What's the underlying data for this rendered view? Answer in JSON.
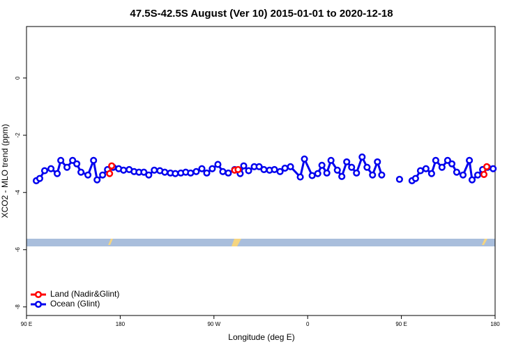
{
  "chart_data": {
    "type": "line",
    "title": "47.5S-42.5S August (Ver 10)   2015-01-01 to 2020-12-18",
    "xlabel": "Longitude (deg E)",
    "ylabel": "XCO2 - MLO trend (ppm)",
    "xlim": [
      90,
      540
    ],
    "ylim": [
      -8.3,
      1.8
    ],
    "xticks": [
      {
        "value": 90,
        "label": "90 E"
      },
      180,
      {
        "value": 270,
        "label": "90 W"
      },
      {
        "value": 360,
        "label": "0"
      },
      {
        "value": 450,
        "label": "90 E"
      },
      {
        "value": 540,
        "label": "180"
      }
    ],
    "yticks": [
      0,
      -2,
      -4,
      -6,
      -8
    ],
    "legend": "bottom-left",
    "series": [
      {
        "name": "Land (Nadir&Glint)",
        "color": "#ff0000",
        "x": [
          169.8,
          171.8,
          200,
          289.9,
          293.2,
          400,
          529.3,
          532.0
        ],
        "values": [
          -3.34,
          -3.07,
          null,
          -3.22,
          -3.2,
          null,
          -3.37,
          -3.1
        ]
      },
      {
        "name": "Ocean (Glint)",
        "color": "#0000ee",
        "x": [
          99.4,
          102.7,
          107.4,
          113.5,
          119.5,
          122.9,
          128.9,
          134.3,
          138.3,
          142.3,
          149.0,
          154.4,
          157.8,
          163.1,
          167.8,
          173.2,
          178.5,
          183.2,
          188.6,
          193.3,
          198.0,
          202.7,
          207.4,
          212.7,
          218.1,
          222.8,
          228.2,
          232.9,
          238.2,
          242.9,
          247.6,
          253.0,
          258.4,
          263.1,
          268.4,
          273.8,
          278.5,
          283.8,
          289.9,
          295.2,
          298.6,
          303.3,
          308.7,
          313.4,
          318.0,
          323.4,
          328.1,
          333.5,
          338.2,
          343.5,
          352.9,
          356.9,
          364.3,
          369.7,
          373.7,
          378.4,
          382.4,
          388.5,
          392.8,
          397.5,
          402.2,
          406.9,
          412.3,
          417.0,
          422.3,
          427.0,
          431.1,
          437,
          448.2,
          455,
          460.2,
          463.6,
          468.3,
          473.6,
          479.0,
          483.0,
          489.0,
          494.4,
          498.5,
          503.1,
          509.2,
          515.3,
          517.9,
          523.3,
          528.0,
          532.7,
          538.1
        ],
        "values": [
          -3.59,
          -3.51,
          -3.24,
          -3.17,
          -3.34,
          -2.88,
          -3.12,
          -2.88,
          -3.0,
          -3.29,
          -3.39,
          -2.88,
          -3.56,
          -3.39,
          -3.2,
          -3.12,
          -3.17,
          -3.22,
          -3.2,
          -3.27,
          -3.29,
          -3.29,
          -3.39,
          -3.22,
          -3.24,
          -3.29,
          -3.32,
          -3.34,
          -3.32,
          -3.29,
          -3.32,
          -3.27,
          -3.17,
          -3.32,
          -3.17,
          -3.02,
          -3.27,
          -3.32,
          -3.2,
          -3.34,
          -3.07,
          -3.24,
          -3.1,
          -3.1,
          -3.2,
          -3.22,
          -3.2,
          -3.27,
          -3.15,
          -3.1,
          -3.46,
          -2.83,
          -3.41,
          -3.34,
          -3.05,
          -3.32,
          -2.88,
          -3.22,
          -3.44,
          -2.93,
          -3.12,
          -3.32,
          -2.76,
          -3.12,
          -3.39,
          -2.93,
          -3.39,
          null,
          -3.54,
          null,
          -3.59,
          -3.51,
          -3.24,
          -3.17,
          -3.34,
          -2.88,
          -3.12,
          -2.88,
          -3.0,
          -3.29,
          -3.39,
          -2.88,
          -3.56,
          -3.39,
          -3.2,
          -3.12,
          -3.17
        ]
      }
    ]
  }
}
